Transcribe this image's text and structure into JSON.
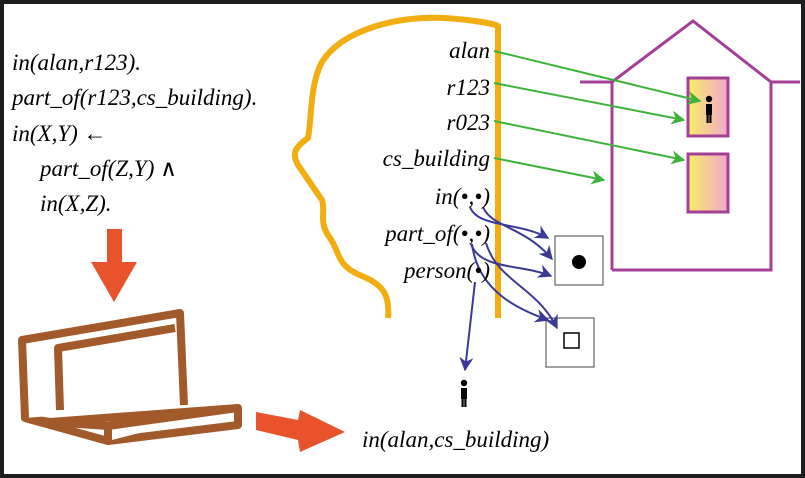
{
  "program": {
    "fact1": "in(alan,r123).",
    "fact2": "part_of(r123,cs_building).",
    "rule_head": "in(X,Y) ←",
    "rule_body1": "part_of(Z,Y) ∧",
    "rule_body2": "in(X,Z)."
  },
  "symbols": {
    "alan": "alan",
    "r123": "r123",
    "r023": "r023",
    "cs_building": "cs_building"
  },
  "predicates": {
    "in": "in(•,•)",
    "part_of": "part_of(•,•)",
    "person": "person(•)"
  },
  "conclusion": "in(alan,cs_building)",
  "colors": {
    "head": "#f2ae10",
    "house": "#a43f96",
    "laptop": "#a25a2b",
    "arrow_orange": "#e8532b",
    "arrow_green": "#3db33a",
    "arrow_blue": "#3a3a94",
    "room_gradient": "#f4e85c"
  },
  "icons": [
    "person-icon",
    "filled-dot-icon",
    "hollow-square-icon"
  ]
}
